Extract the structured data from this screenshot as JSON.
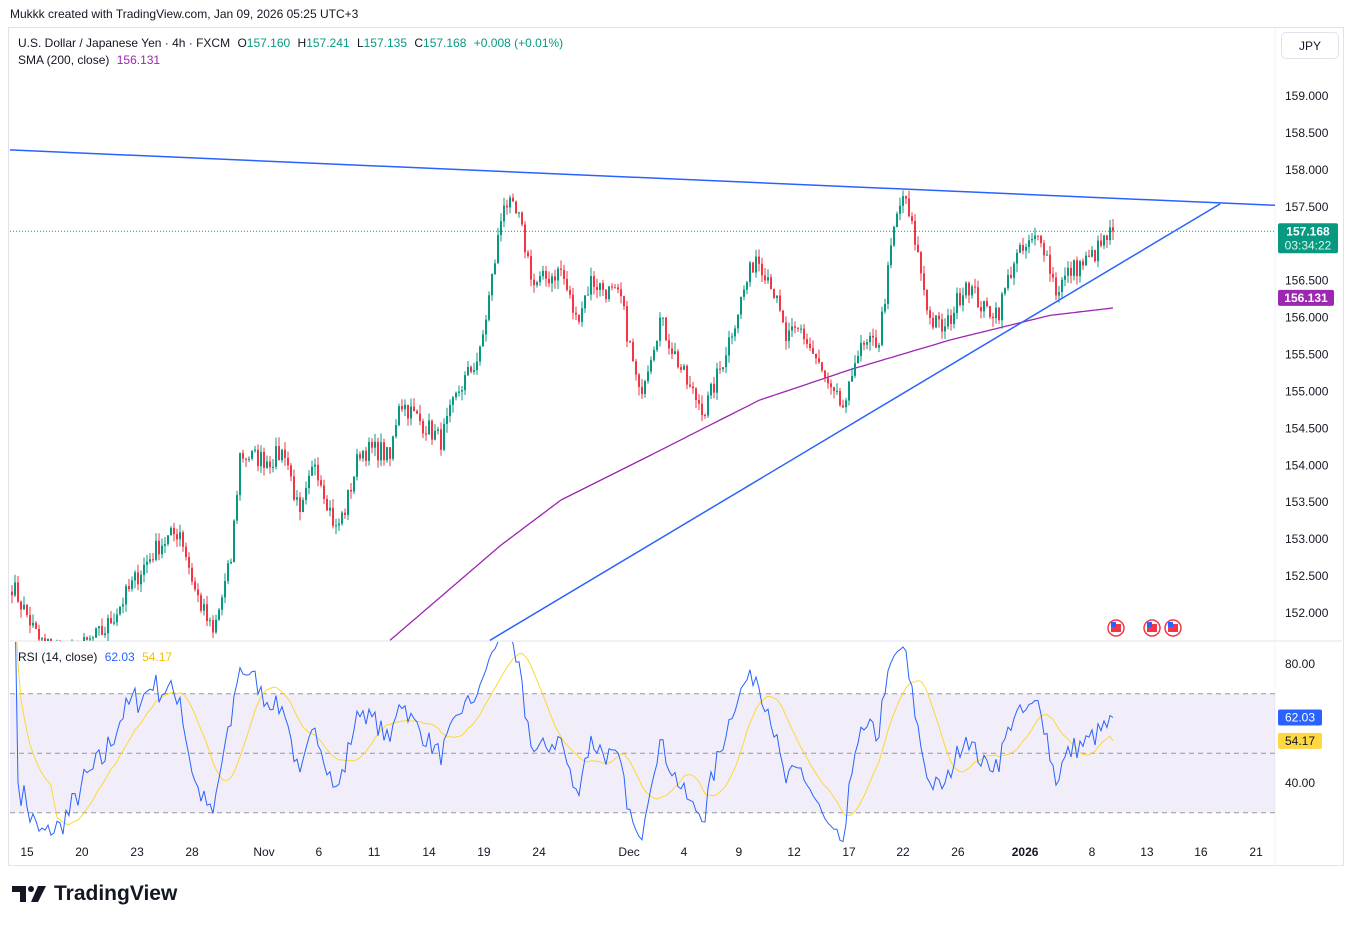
{
  "credit": "Mukkk created with TradingView.com, Jan 09, 2026 05:25 UTC+3",
  "legend": {
    "symbol": "U.S. Dollar / Japanese Yen · 4h · FXCM",
    "o_label": "O",
    "o": "157.160",
    "h_label": "H",
    "h": "157.241",
    "l_label": "L",
    "l": "157.135",
    "c_label": "C",
    "c": "157.168",
    "change": "+0.008 (+0.01%)",
    "sma_label": "SMA (200, close)",
    "sma_value": "156.131",
    "rsi_label": "RSI (14, close)",
    "rsi_value": "62.03",
    "rsi_ma_value": "54.17"
  },
  "currency_button": "JPY",
  "last_price_label": "157.168",
  "countdown": "03:34:22",
  "sma_price_label": "156.131",
  "logo_text": "TradingView",
  "colors": {
    "up": "#089981",
    "down": "#f23645",
    "sma": "#9c27b0",
    "trend": "#2962ff",
    "rsi": "#2962ff",
    "rsi_ma": "#fdd835",
    "band": "#7e57c2"
  },
  "chart_data": {
    "type": "candlestick",
    "title": "U.S. Dollar / Japanese Yen · 4h · FXCM",
    "ylim": [
      151.55,
      159.9
    ],
    "price_ticks": [
      "159.000",
      "158.500",
      "158.000",
      "157.500",
      "156.500",
      "156.000",
      "155.500",
      "155.000",
      "154.500",
      "154.000",
      "153.500",
      "153.000",
      "152.500",
      "152.000"
    ],
    "x_ticks": [
      {
        "label": "15",
        "bar": 5
      },
      {
        "label": "20",
        "bar": 23.3
      },
      {
        "label": "23",
        "bar": 41.7
      },
      {
        "label": "28",
        "bar": 60
      },
      {
        "label": "Nov",
        "bar": 84
      },
      {
        "label": "6",
        "bar": 102.3
      },
      {
        "label": "11",
        "bar": 120.7
      },
      {
        "label": "14",
        "bar": 139
      },
      {
        "label": "19",
        "bar": 157.3
      },
      {
        "label": "24",
        "bar": 175.7
      },
      {
        "label": "Dec",
        "bar": 205.7
      },
      {
        "label": "4",
        "bar": 224
      },
      {
        "label": "9",
        "bar": 242.3
      },
      {
        "label": "12",
        "bar": 260.7
      },
      {
        "label": "17",
        "bar": 279
      },
      {
        "label": "22",
        "bar": 297
      },
      {
        "label": "26",
        "bar": 315.3
      },
      {
        "label": "2026",
        "bar": 337.7
      },
      {
        "label": "8",
        "bar": 360
      },
      {
        "label": "13",
        "bar": 378.3
      },
      {
        "label": "16",
        "bar": 396.3
      },
      {
        "label": "21",
        "bar": 414.7
      }
    ],
    "close_path": [
      [
        0,
        152.38
      ],
      [
        9,
        151.63
      ],
      [
        19,
        151.4
      ],
      [
        31,
        151.77
      ],
      [
        43,
        152.58
      ],
      [
        49,
        152.92
      ],
      [
        56,
        153.12
      ],
      [
        61,
        152.31
      ],
      [
        67,
        151.7
      ],
      [
        73,
        152.72
      ],
      [
        76,
        154.14
      ],
      [
        86,
        154.07
      ],
      [
        91,
        154.2
      ],
      [
        96,
        153.26
      ],
      [
        101,
        154.07
      ],
      [
        108,
        153.12
      ],
      [
        111,
        153.4
      ],
      [
        116,
        154.2
      ],
      [
        123,
        154.2
      ],
      [
        126,
        154.07
      ],
      [
        129,
        154.88
      ],
      [
        136,
        154.6
      ],
      [
        143,
        154.34
      ],
      [
        149,
        155.02
      ],
      [
        156,
        155.5
      ],
      [
        161,
        156.78
      ],
      [
        164,
        157.6
      ],
      [
        169,
        157.32
      ],
      [
        174,
        156.44
      ],
      [
        183,
        156.64
      ],
      [
        188,
        155.97
      ],
      [
        193,
        156.5
      ],
      [
        203,
        156.24
      ],
      [
        209,
        154.95
      ],
      [
        216,
        155.97
      ],
      [
        226,
        155.02
      ],
      [
        231,
        154.75
      ],
      [
        236,
        155.3
      ],
      [
        243,
        156.24
      ],
      [
        248,
        156.85
      ],
      [
        253,
        156.5
      ],
      [
        258,
        155.7
      ],
      [
        263,
        155.83
      ],
      [
        268,
        155.43
      ],
      [
        273,
        154.95
      ],
      [
        278,
        154.75
      ],
      [
        281,
        155.5
      ],
      [
        289,
        155.7
      ],
      [
        294,
        157.19
      ],
      [
        297,
        157.66
      ],
      [
        301,
        157.05
      ],
      [
        306,
        155.97
      ],
      [
        311,
        155.83
      ],
      [
        318,
        156.5
      ],
      [
        324,
        156.1
      ],
      [
        329,
        156.1
      ],
      [
        334,
        156.78
      ],
      [
        343,
        157.12
      ],
      [
        348,
        156.37
      ],
      [
        353,
        156.64
      ],
      [
        359,
        156.78
      ],
      [
        367,
        157.168
      ]
    ],
    "sma_200": [
      [
        126,
        151.63
      ],
      [
        163,
        152.92
      ],
      [
        183,
        153.53
      ],
      [
        213,
        154.14
      ],
      [
        249,
        154.88
      ],
      [
        279,
        155.29
      ],
      [
        313,
        155.7
      ],
      [
        346,
        156.03
      ],
      [
        367,
        156.13
      ]
    ],
    "trendlines": [
      {
        "name": "upper-resistance",
        "from": [
          -0.7,
          158.27
        ],
        "to": [
          421,
          157.52
        ]
      },
      {
        "name": "lower-support",
        "from": [
          159.3,
          151.63
        ],
        "to": [
          402.7,
          157.54
        ]
      }
    ],
    "last_close": 157.168,
    "sma_last": 156.131,
    "rsi": {
      "period": 14,
      "last": 62.03,
      "ma_last": 54.17,
      "ylim": [
        26,
        87
      ],
      "band": [
        30,
        70
      ],
      "mid": 50,
      "ticks": [
        "80.00",
        "40.00"
      ]
    },
    "events_bars": [
      368,
      380,
      387
    ]
  }
}
